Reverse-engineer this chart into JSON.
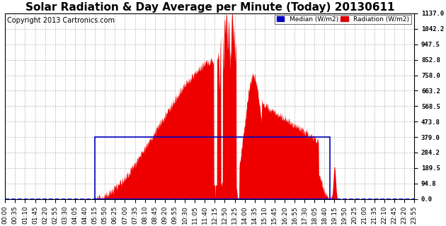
{
  "title": "Solar Radiation & Day Average per Minute (Today) 20130611",
  "copyright_text": "Copyright 2013 Cartronics.com",
  "legend_median_label": "Median (W/m2)",
  "legend_radiation_label": "Radiation (W/m2)",
  "legend_median_color": "#0000bb",
  "legend_radiation_color": "#dd0000",
  "background_color": "#ffffff",
  "plot_bg_color": "#ffffff",
  "grid_color": "#aaaaaa",
  "radiation_fill_color": "#ee0000",
  "radiation_line_color": "#ee0000",
  "median_box_color": "#0000bb",
  "y_min": 0.0,
  "y_max": 1137.0,
  "y_ticks": [
    0.0,
    94.8,
    189.5,
    284.2,
    379.0,
    473.8,
    568.5,
    663.2,
    758.0,
    852.8,
    947.5,
    1042.2,
    1137.0
  ],
  "median_value": 379.0,
  "median_start_minute": 315,
  "median_end_minute": 1140,
  "x_min": 0,
  "x_max": 1435,
  "title_fontsize": 11,
  "tick_fontsize": 6.5,
  "copyright_fontsize": 7
}
